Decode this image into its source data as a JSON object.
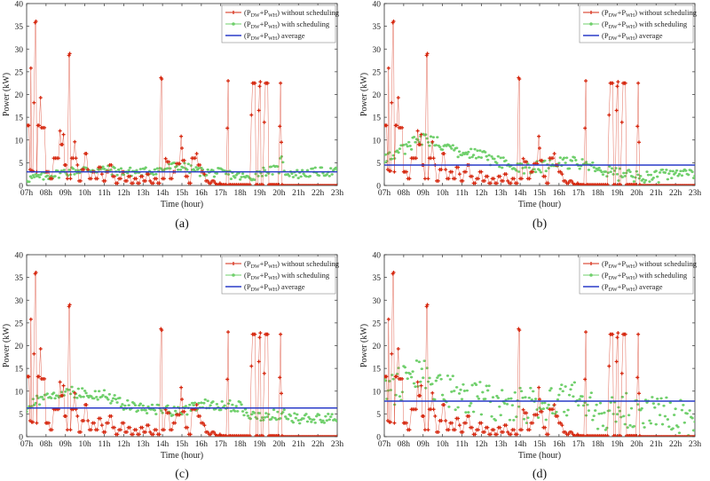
{
  "colors": {
    "without": "#d62810",
    "with": "#6fcf6b",
    "average": "#2a3cc8",
    "axis": "#333333"
  },
  "chart_data": [
    {
      "type": "scatter",
      "caption": "(a)",
      "xlabel": "Time (hour)",
      "ylabel": "Power (kW)",
      "ylim": [
        0,
        40
      ],
      "yticks": [
        "0",
        "5",
        "10",
        "15",
        "20",
        "25",
        "30",
        "35",
        "40"
      ],
      "xticks": [
        "07h",
        "08h",
        "09h",
        "10h",
        "11h",
        "12h",
        "13h",
        "14h",
        "15h",
        "16h",
        "17h",
        "18h",
        "19h",
        "20h",
        "21h",
        "22h",
        "23h"
      ],
      "legend": {
        "position": "top-right",
        "entries": [
          "(PDW+PWH) without scheduling",
          "(PDW+PWH) with scheduling",
          "(PDW+PWH) average"
        ]
      },
      "average": 3.0,
      "with_profile": [
        [
          7.0,
          1.5
        ],
        [
          8.0,
          2.0
        ],
        [
          9.0,
          3.0
        ],
        [
          10.0,
          3.5
        ],
        [
          11.0,
          3.5
        ],
        [
          12.0,
          3.0
        ],
        [
          13.0,
          3.0
        ],
        [
          14.0,
          3.5
        ],
        [
          14.5,
          4.2
        ],
        [
          15.0,
          4.3
        ],
        [
          15.5,
          3.5
        ],
        [
          16.0,
          3.0
        ],
        [
          17.0,
          2.8
        ],
        [
          18.0,
          2.0
        ],
        [
          18.5,
          1.5
        ],
        [
          19.0,
          3.0
        ],
        [
          20.0,
          3.5
        ],
        [
          20.05,
          7.0
        ],
        [
          20.3,
          3.0
        ],
        [
          21.0,
          2.5
        ],
        [
          22.0,
          3.0
        ],
        [
          23.0,
          3.0
        ]
      ],
      "with_spread": 1.0
    },
    {
      "type": "scatter",
      "caption": "(b)",
      "xlabel": "Time (hour)",
      "ylabel": "Power (kW)",
      "ylim": [
        0,
        40
      ],
      "yticks": [
        "0",
        "5",
        "10",
        "15",
        "20",
        "25",
        "30",
        "35",
        "40"
      ],
      "xticks": [
        "07h",
        "08h",
        "09h",
        "10h",
        "11h",
        "12h",
        "13h",
        "14h",
        "15h",
        "16h",
        "17h",
        "18h",
        "19h",
        "20h",
        "21h",
        "22h",
        "23h"
      ],
      "legend": {
        "position": "top-right",
        "entries": [
          "(PDW+PWH) without scheduling",
          "(PDW+PWH) with scheduling",
          "(PDW+PWH) average"
        ]
      },
      "average": 4.5,
      "with_profile": [
        [
          7.0,
          6.0
        ],
        [
          8.0,
          8.0
        ],
        [
          9.0,
          10.5
        ],
        [
          10.0,
          9.0
        ],
        [
          11.0,
          7.0
        ],
        [
          12.0,
          6.5
        ],
        [
          13.0,
          5.0
        ],
        [
          14.0,
          4.0
        ],
        [
          15.0,
          4.0
        ],
        [
          16.0,
          5.0
        ],
        [
          17.0,
          5.0
        ],
        [
          18.0,
          3.5
        ],
        [
          19.0,
          2.5
        ],
        [
          20.0,
          2.0
        ],
        [
          21.0,
          2.0
        ],
        [
          22.0,
          2.5
        ],
        [
          23.0,
          2.5
        ]
      ],
      "with_spread": 1.4
    },
    {
      "type": "scatter",
      "caption": "(c)",
      "xlabel": "Time (hour)",
      "ylabel": "Power (kW)",
      "ylim": [
        0,
        40
      ],
      "yticks": [
        "0",
        "5",
        "10",
        "15",
        "20",
        "25",
        "30",
        "35",
        "40"
      ],
      "xticks": [
        "07h",
        "08h",
        "09h",
        "10h",
        "11h",
        "12h",
        "13h",
        "14h",
        "15h",
        "16h",
        "17h",
        "18h",
        "19h",
        "20h",
        "21h",
        "22h",
        "23h"
      ],
      "legend": {
        "position": "top-right",
        "entries": [
          "(PDW+PWH) without scheduling",
          "(PDW+PWH) with scheduling",
          "(PDW+PWH) average"
        ]
      },
      "average": 6.3,
      "with_profile": [
        [
          7.0,
          6.5
        ],
        [
          8.0,
          9.0
        ],
        [
          9.0,
          10.0
        ],
        [
          10.0,
          9.5
        ],
        [
          11.0,
          9.0
        ],
        [
          12.0,
          7.0
        ],
        [
          13.0,
          6.0
        ],
        [
          14.0,
          6.0
        ],
        [
          15.0,
          5.5
        ],
        [
          16.0,
          7.0
        ],
        [
          17.0,
          7.0
        ],
        [
          18.0,
          6.5
        ],
        [
          18.5,
          4.5
        ],
        [
          19.0,
          4.5
        ],
        [
          20.0,
          5.0
        ],
        [
          21.0,
          4.0
        ],
        [
          22.0,
          4.0
        ],
        [
          23.0,
          4.0
        ]
      ],
      "with_spread": 1.2
    },
    {
      "type": "scatter",
      "caption": "(d)",
      "xlabel": "Time (hour)",
      "ylabel": "Power (kW)",
      "ylim": [
        0,
        40
      ],
      "yticks": [
        "0",
        "5",
        "10",
        "15",
        "20",
        "25",
        "30",
        "35",
        "40"
      ],
      "xticks": [
        "07h",
        "08h",
        "09h",
        "10h",
        "11h",
        "12h",
        "13h",
        "14h",
        "15h",
        "16h",
        "17h",
        "18h",
        "19h",
        "20h",
        "21h",
        "22h",
        "23h"
      ],
      "legend": {
        "position": "top-right",
        "entries": [
          "(PDW+PWH) without scheduling",
          "(PDW+PWH) with scheduling",
          "(PDW+PWH) average"
        ]
      },
      "average": 7.8,
      "with_profile": [
        [
          7.0,
          9.0
        ],
        [
          8.0,
          12.0
        ],
        [
          9.0,
          14.0
        ],
        [
          10.0,
          10.0
        ],
        [
          11.0,
          9.0
        ],
        [
          12.0,
          8.0
        ],
        [
          13.0,
          7.0
        ],
        [
          14.0,
          7.0
        ],
        [
          15.0,
          7.0
        ],
        [
          16.0,
          8.0
        ],
        [
          17.0,
          8.0
        ],
        [
          18.0,
          5.0
        ],
        [
          19.0,
          6.0
        ],
        [
          20.0,
          6.0
        ],
        [
          21.0,
          5.0
        ],
        [
          22.0,
          4.5
        ],
        [
          23.0,
          4.0
        ]
      ],
      "with_spread": 4.0
    }
  ],
  "without_series": [
    [
      7.0,
      13.2
    ],
    [
      7.06,
      13.2
    ],
    [
      7.12,
      13.2
    ],
    [
      7.18,
      3.5
    ],
    [
      7.22,
      25.8
    ],
    [
      7.26,
      3.2
    ],
    [
      7.32,
      3.2
    ],
    [
      7.38,
      18.2
    ],
    [
      7.44,
      35.8
    ],
    [
      7.48,
      36.1
    ],
    [
      7.52,
      3.0
    ],
    [
      7.58,
      13.2
    ],
    [
      7.64,
      13.2
    ],
    [
      7.72,
      19.3
    ],
    [
      7.76,
      12.7
    ],
    [
      7.84,
      12.7
    ],
    [
      7.92,
      12.7
    ],
    [
      8.0,
      3.0
    ],
    [
      8.06,
      3.0
    ],
    [
      8.14,
      3.0
    ],
    [
      8.22,
      1.5
    ],
    [
      8.3,
      1.5
    ],
    [
      8.4,
      6.0
    ],
    [
      8.48,
      6.0
    ],
    [
      8.56,
      6.0
    ],
    [
      8.64,
      6.0
    ],
    [
      8.72,
      12.0
    ],
    [
      8.78,
      9.0
    ],
    [
      8.84,
      9.0
    ],
    [
      8.9,
      11.2
    ],
    [
      8.96,
      4.5
    ],
    [
      9.02,
      4.5
    ],
    [
      9.1,
      1.5
    ],
    [
      9.18,
      28.6
    ],
    [
      9.22,
      29.0
    ],
    [
      9.26,
      1.5
    ],
    [
      9.32,
      6.0
    ],
    [
      9.4,
      6.0
    ],
    [
      9.48,
      9.6
    ],
    [
      9.54,
      6.0
    ],
    [
      9.62,
      4.5
    ],
    [
      9.7,
      1.0
    ],
    [
      9.78,
      1.0
    ],
    [
      9.86,
      3.5
    ],
    [
      9.94,
      3.5
    ],
    [
      10.02,
      7.0
    ],
    [
      10.08,
      7.0
    ],
    [
      10.16,
      3.5
    ],
    [
      10.24,
      1.5
    ],
    [
      10.32,
      1.5
    ],
    [
      10.4,
      3.0
    ],
    [
      10.48,
      3.0
    ],
    [
      10.56,
      1.5
    ],
    [
      10.64,
      1.5
    ],
    [
      10.72,
      4.0
    ],
    [
      10.8,
      4.0
    ],
    [
      10.88,
      2.5
    ],
    [
      10.96,
      1.0
    ],
    [
      11.04,
      1.0
    ],
    [
      11.12,
      3.0
    ],
    [
      11.2,
      3.0
    ],
    [
      11.28,
      4.5
    ],
    [
      11.36,
      4.5
    ],
    [
      11.44,
      2.0
    ],
    [
      11.52,
      2.0
    ],
    [
      11.6,
      0.5
    ],
    [
      11.68,
      0.5
    ],
    [
      11.76,
      1.5
    ],
    [
      11.84,
      1.5
    ],
    [
      11.92,
      3.0
    ],
    [
      12.0,
      3.0
    ],
    [
      12.08,
      1.0
    ],
    [
      12.16,
      1.0
    ],
    [
      12.24,
      2.0
    ],
    [
      12.32,
      2.0
    ],
    [
      12.4,
      0.5
    ],
    [
      12.48,
      0.5
    ],
    [
      12.56,
      1.5
    ],
    [
      12.64,
      1.5
    ],
    [
      12.72,
      0.5
    ],
    [
      12.8,
      0.5
    ],
    [
      12.88,
      2.0
    ],
    [
      12.96,
      2.0
    ],
    [
      13.04,
      1.0
    ],
    [
      13.12,
      1.0
    ],
    [
      13.2,
      2.5
    ],
    [
      13.28,
      2.5
    ],
    [
      13.36,
      1.0
    ],
    [
      13.44,
      0.5
    ],
    [
      13.52,
      0.5
    ],
    [
      13.6,
      1.5
    ],
    [
      13.68,
      1.5
    ],
    [
      13.76,
      0.5
    ],
    [
      13.84,
      0.5
    ],
    [
      13.92,
      23.7
    ],
    [
      13.96,
      23.4
    ],
    [
      14.0,
      1.5
    ],
    [
      14.08,
      1.5
    ],
    [
      14.16,
      5.9
    ],
    [
      14.24,
      5.2
    ],
    [
      14.32,
      5.2
    ],
    [
      14.4,
      1.5
    ],
    [
      14.48,
      1.5
    ],
    [
      14.56,
      3.0
    ],
    [
      14.64,
      3.0
    ],
    [
      14.72,
      4.8
    ],
    [
      14.8,
      4.8
    ],
    [
      14.88,
      4.8
    ],
    [
      14.96,
      10.8
    ],
    [
      15.0,
      8.2
    ],
    [
      15.04,
      5.5
    ],
    [
      15.12,
      5.5
    ],
    [
      15.2,
      2.0
    ],
    [
      15.28,
      2.0
    ],
    [
      15.36,
      0.5
    ],
    [
      15.44,
      0.5
    ],
    [
      15.52,
      6.0
    ],
    [
      15.6,
      6.0
    ],
    [
      15.68,
      6.0
    ],
    [
      15.76,
      7.0
    ],
    [
      15.84,
      4.5
    ],
    [
      15.92,
      4.5
    ],
    [
      16.0,
      3.0
    ],
    [
      16.08,
      3.0
    ],
    [
      16.16,
      2.5
    ],
    [
      16.24,
      1.0
    ],
    [
      16.32,
      1.0
    ],
    [
      16.4,
      0.5
    ],
    [
      16.48,
      0.5
    ],
    [
      16.56,
      1.0
    ],
    [
      16.64,
      1.0
    ],
    [
      16.72,
      0.5
    ],
    [
      16.8,
      0.2
    ],
    [
      16.88,
      0.2
    ],
    [
      16.96,
      0.5
    ],
    [
      17.04,
      0.2
    ],
    [
      17.12,
      0.2
    ],
    [
      17.2,
      0.2
    ],
    [
      17.28,
      0.2
    ],
    [
      17.34,
      12.6
    ],
    [
      17.38,
      23.0
    ],
    [
      17.42,
      0.2
    ],
    [
      17.5,
      0.2
    ],
    [
      17.6,
      0.2
    ],
    [
      17.7,
      0.2
    ],
    [
      17.8,
      0.2
    ],
    [
      17.9,
      0.2
    ],
    [
      18.0,
      0.2
    ],
    [
      18.1,
      0.2
    ],
    [
      18.2,
      0.2
    ],
    [
      18.3,
      0.2
    ],
    [
      18.4,
      0.2
    ],
    [
      18.5,
      0.2
    ],
    [
      18.58,
      15.5
    ],
    [
      18.64,
      22.5
    ],
    [
      18.7,
      22.5
    ],
    [
      18.76,
      22.5
    ],
    [
      18.82,
      0.2
    ],
    [
      18.9,
      0.2
    ],
    [
      18.96,
      16.5
    ],
    [
      19.0,
      21.8
    ],
    [
      19.04,
      22.8
    ],
    [
      19.08,
      0.2
    ],
    [
      19.16,
      0.2
    ],
    [
      19.24,
      13.9
    ],
    [
      19.3,
      22.5
    ],
    [
      19.36,
      22.5
    ],
    [
      19.42,
      22.5
    ],
    [
      19.48,
      0.2
    ],
    [
      19.56,
      0.2
    ],
    [
      19.64,
      0.2
    ],
    [
      19.72,
      0.2
    ],
    [
      19.8,
      0.2
    ],
    [
      19.88,
      0.2
    ],
    [
      19.96,
      0.2
    ],
    [
      20.04,
      13.0
    ],
    [
      20.08,
      22.5
    ],
    [
      20.12,
      9.5
    ],
    [
      20.16,
      0.2
    ]
  ],
  "without_xmax": 20.2
}
